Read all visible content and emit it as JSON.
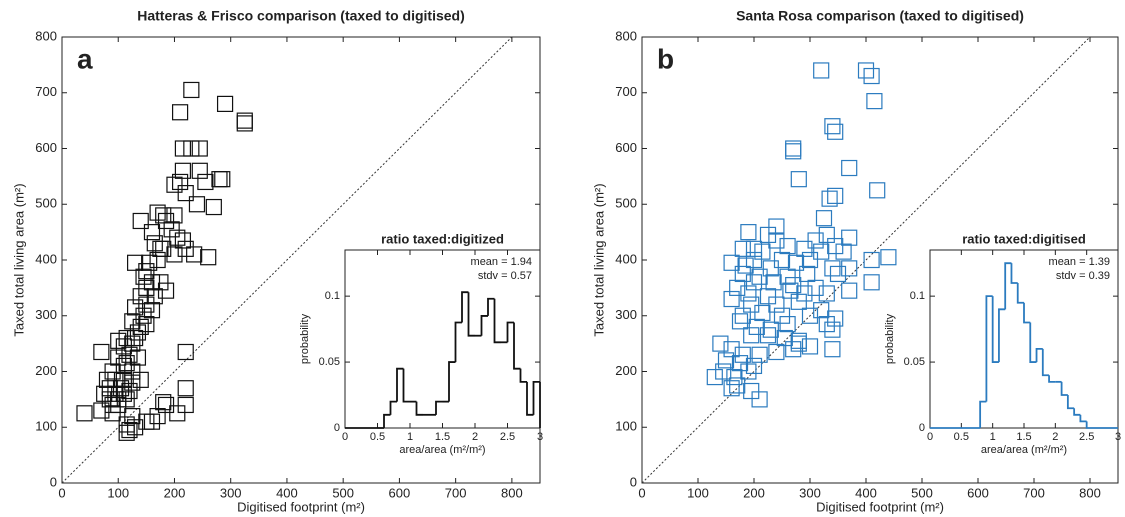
{
  "chart_data": [
    {
      "type": "scatter",
      "title": "Hatteras & Frisco comparison (taxed to digitised)",
      "panel_label": "a",
      "xlabel": "Digitised footprint (m²)",
      "ylabel": "Taxed total living area (m²)",
      "xlim": [
        0,
        850
      ],
      "ylim": [
        0,
        800
      ],
      "xticks": [
        0,
        100,
        200,
        300,
        400,
        500,
        600,
        700,
        800
      ],
      "yticks": [
        0,
        100,
        200,
        300,
        400,
        500,
        600,
        700,
        800
      ],
      "color": "#111111",
      "x": [
        230,
        210,
        290,
        325,
        325,
        215,
        230,
        245,
        215,
        245,
        280,
        285,
        255,
        210,
        200,
        220,
        240,
        270,
        200,
        170,
        180,
        185,
        195,
        205,
        215,
        220,
        235,
        260,
        140,
        160,
        165,
        175,
        180,
        200,
        170,
        155,
        130,
        150,
        145,
        160,
        175,
        150,
        185,
        165,
        140,
        150,
        130,
        160,
        145,
        125,
        150,
        140,
        135,
        130,
        115,
        100,
        125,
        110,
        120,
        135,
        115,
        100,
        110,
        125,
        90,
        70,
        80,
        95,
        110,
        125,
        140,
        85,
        105,
        120,
        75,
        95,
        110,
        85,
        100,
        115,
        90,
        70,
        40,
        90,
        125,
        150,
        170,
        185,
        205,
        220,
        220,
        180,
        115,
        120,
        115,
        130,
        220,
        100,
        160
      ],
      "y": [
        705,
        665,
        680,
        650,
        645,
        600,
        600,
        600,
        560,
        560,
        545,
        545,
        540,
        540,
        535,
        520,
        500,
        495,
        480,
        485,
        480,
        470,
        455,
        440,
        435,
        420,
        410,
        405,
        470,
        450,
        430,
        420,
        420,
        410,
        400,
        395,
        395,
        380,
        370,
        360,
        360,
        350,
        345,
        335,
        335,
        320,
        315,
        310,
        300,
        290,
        285,
        280,
        270,
        260,
        260,
        255,
        250,
        245,
        230,
        225,
        215,
        225,
        210,
        200,
        200,
        235,
        185,
        185,
        185,
        180,
        185,
        170,
        170,
        165,
        160,
        160,
        160,
        150,
        150,
        150,
        140,
        130,
        125,
        125,
        120,
        110,
        120,
        140,
        125,
        140,
        170,
        145,
        105,
        95,
        90,
        100,
        235,
        140,
        110
      ],
      "inset": {
        "type": "histogram",
        "title": "ratio taxed:digitized",
        "annotations": [
          "mean = 1.94",
          "stdv = 0.57"
        ],
        "xlabel": "area/area (m²/m²)",
        "ylabel": "probability",
        "xlim": [
          0,
          3
        ],
        "ylim": [
          0,
          0.135
        ],
        "xticks": [
          0,
          0.5,
          1,
          1.5,
          2,
          2.5,
          3
        ],
        "yticks": [
          0,
          0.05,
          0.1
        ],
        "bins": [
          0.5,
          0.6,
          0.7,
          0.8,
          0.9,
          1.0,
          1.1,
          1.2,
          1.3,
          1.4,
          1.5,
          1.6,
          1.7,
          1.8,
          1.9,
          2.0,
          2.1,
          2.2,
          2.3,
          2.4,
          2.5,
          2.6,
          2.7,
          2.8,
          2.9,
          3.0
        ],
        "values": [
          0,
          0.01,
          0.02,
          0.045,
          0.02,
          0.02,
          0.01,
          0.01,
          0.01,
          0.02,
          0.02,
          0.05,
          0.08,
          0.103,
          0.07,
          0.07,
          0.085,
          0.098,
          0.065,
          0.065,
          0.08,
          0.045,
          0.035,
          0.01,
          0.035
        ]
      }
    },
    {
      "type": "scatter",
      "title": "Santa Rosa comparison (taxed to digitised)",
      "panel_label": "b",
      "xlabel": "Digitised footprint (m²)",
      "ylabel": "Taxed total living area (m²)",
      "xlim": [
        0,
        850
      ],
      "ylim": [
        0,
        800
      ],
      "xticks": [
        0,
        100,
        200,
        300,
        400,
        500,
        600,
        700,
        800
      ],
      "yticks": [
        0,
        100,
        200,
        300,
        400,
        500,
        600,
        700,
        800
      ],
      "color": "#2b7bbf",
      "x": [
        320,
        400,
        410,
        415,
        340,
        345,
        270,
        270,
        370,
        280,
        420,
        345,
        335,
        240,
        325,
        190,
        225,
        240,
        310,
        330,
        370,
        260,
        290,
        345,
        180,
        200,
        215,
        320,
        360,
        410,
        440,
        250,
        275,
        300,
        200,
        160,
        185,
        230,
        340,
        370,
        180,
        210,
        260,
        295,
        350,
        200,
        235,
        270,
        310,
        410,
        170,
        190,
        225,
        265,
        290,
        330,
        370,
        160,
        195,
        240,
        280,
        320,
        180,
        215,
        250,
        300,
        345,
        175,
        205,
        230,
        260,
        330,
        340,
        195,
        225,
        255,
        280,
        300,
        140,
        160,
        180,
        210,
        240,
        270,
        150,
        175,
        200,
        145,
        130,
        165,
        190,
        170,
        195,
        210,
        160,
        340,
        280
      ],
      "y": [
        740,
        740,
        730,
        685,
        640,
        630,
        600,
        595,
        565,
        545,
        525,
        515,
        510,
        460,
        475,
        450,
        445,
        435,
        435,
        445,
        440,
        425,
        420,
        425,
        420,
        420,
        415,
        415,
        415,
        400,
        405,
        400,
        395,
        400,
        400,
        395,
        390,
        385,
        385,
        385,
        375,
        370,
        370,
        375,
        375,
        360,
        360,
        355,
        350,
        360,
        350,
        340,
        335,
        345,
        340,
        340,
        345,
        330,
        320,
        320,
        325,
        310,
        300,
        305,
        300,
        300,
        295,
        290,
        280,
        275,
        285,
        285,
        275,
        265,
        265,
        260,
        255,
        245,
        250,
        240,
        230,
        230,
        235,
        240,
        220,
        215,
        210,
        200,
        190,
        190,
        200,
        175,
        165,
        150,
        170,
        240,
        250
      ],
      "inset": {
        "type": "histogram",
        "title": "ratio taxed:digitised",
        "annotations": [
          "mean = 1.39",
          "stdv = 0.39"
        ],
        "xlabel": "area/area (m²/m²)",
        "ylabel": "probability",
        "xlim": [
          0,
          3
        ],
        "ylim": [
          0,
          0.135
        ],
        "xticks": [
          0,
          0.5,
          1,
          1.5,
          2,
          2.5,
          3
        ],
        "yticks": [
          0,
          0.05,
          0.1
        ],
        "bins": [
          0.8,
          0.9,
          1.0,
          1.1,
          1.2,
          1.3,
          1.4,
          1.5,
          1.6,
          1.7,
          1.8,
          1.9,
          2.0,
          2.1,
          2.2,
          2.3,
          2.4,
          2.5
        ],
        "values": [
          0.02,
          0.1,
          0.05,
          0.09,
          0.125,
          0.11,
          0.095,
          0.08,
          0.05,
          0.06,
          0.04,
          0.035,
          0.035,
          0.025,
          0.015,
          0.01,
          0.005
        ]
      }
    }
  ]
}
